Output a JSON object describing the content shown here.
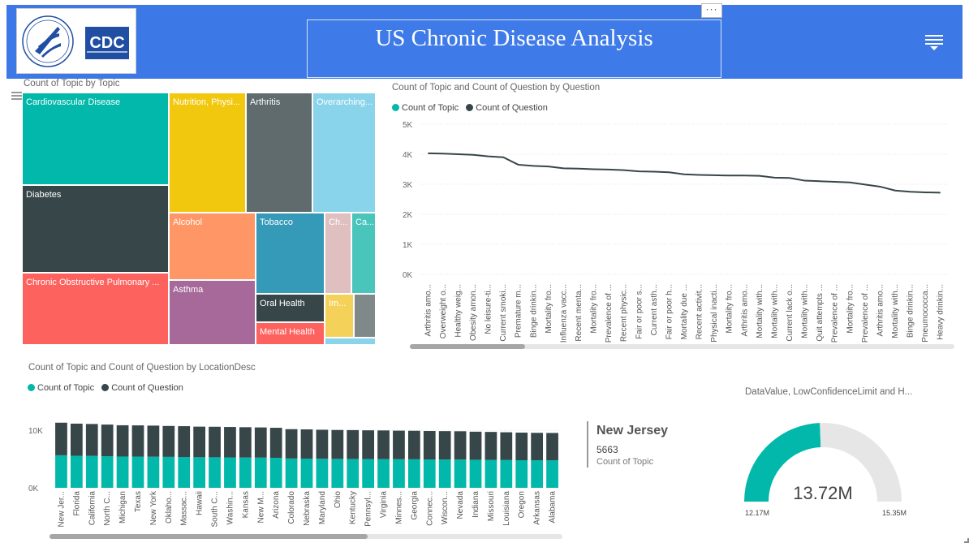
{
  "header": {
    "title": "US Chronic Disease Analysis",
    "more_icon": "ellipsis-icon",
    "menu_icon": "hamburger-menu-icon",
    "logo_cdc_text": "CDC",
    "colors": {
      "banner": "#3c78e6"
    }
  },
  "treemap": {
    "title": "Count of Topic by Topic",
    "tiles": [
      {
        "label": "Cardiovascular Disease",
        "color": "#01b8aa"
      },
      {
        "label": "Diabetes",
        "color": "#374649"
      },
      {
        "label": "Chronic Obstructive Pulmonary ...",
        "color": "#fd625e"
      },
      {
        "label": "Nutrition, Physi...",
        "color": "#f2c80f"
      },
      {
        "label": "Alcohol",
        "color": "#fe9666"
      },
      {
        "label": "Asthma",
        "color": "#a66999"
      },
      {
        "label": "Arthritis",
        "color": "#5f6b6d"
      },
      {
        "label": "Tobacco",
        "color": "#3599b8"
      },
      {
        "label": "Oral Health",
        "color": "#374649"
      },
      {
        "label": "Mental Health",
        "color": "#fd625e"
      },
      {
        "label": "Overarching...",
        "color": "#8ad4eb"
      },
      {
        "label": "Ch...",
        "color": "#dfbfbf"
      },
      {
        "label": "Ca...",
        "color": "#4ac5bb"
      },
      {
        "label": "Im...",
        "color": "#f4d25a"
      },
      {
        "label": "",
        "color": "#7f898a"
      },
      {
        "label": "",
        "color": "#8ad4eb"
      }
    ]
  },
  "question_chart": {
    "title": "Count of Topic and Count of Question by Question",
    "legend": [
      "Count of Topic",
      "Count of Question"
    ],
    "series_colors": [
      "#01b8aa",
      "#374649"
    ]
  },
  "location_chart": {
    "title": "Count of Topic and Count of Question by LocationDesc",
    "legend": [
      "Count of Topic",
      "Count of Question"
    ],
    "series_colors": [
      "#01b8aa",
      "#374649"
    ]
  },
  "card": {
    "name": "New Jersey",
    "value": "5663",
    "label": "Count of Topic"
  },
  "gauge": {
    "title": "DataValue, LowConfidenceLimit and H...",
    "value_label": "13.72M",
    "min_label": "12.17M",
    "max_label": "15.35M",
    "value": 13.72,
    "min": 12.17,
    "max": 15.35,
    "colors": {
      "fill": "#01b8aa",
      "track": "#e6e6e6"
    }
  },
  "chart_data": [
    {
      "type": "line",
      "title": "Count of Topic and Count of Question by Question",
      "ylim": [
        0,
        5000
      ],
      "y_ticks": [
        "0K",
        "1K",
        "2K",
        "3K",
        "4K",
        "5K"
      ],
      "categories": [
        "Arthritis amo...",
        "Overweight o...",
        "Healthy weig...",
        "Obesity amon...",
        "No leisure-ti...",
        "Current smoki...",
        "Premature m...",
        "Binge drinkin...",
        "Mortality fro...",
        "Influenza vacc...",
        "Recent menta...",
        "Mortality fro...",
        "Prevalence of ...",
        "Recent physic...",
        "Fair or poor s...",
        "Current asth...",
        "Fair or poor h...",
        "Mortality due ...",
        "Recent activit...",
        "Physical inacti...",
        "Mortality fro...",
        "Arthritis amo...",
        "Mortality with...",
        "Mortality with...",
        "Current lack o...",
        "Mortality with...",
        "Quit attempts ...",
        "Prevalence of ...",
        "Mortality fro...",
        "Prevalence of ...",
        "Arthritis amo...",
        "Mortality with...",
        "Binge drinkin...",
        "Pneumococca...",
        "Heavy drinkin..."
      ],
      "series": [
        {
          "name": "Count of Question",
          "values": [
            4030,
            4020,
            4000,
            3980,
            3930,
            3900,
            3650,
            3610,
            3590,
            3530,
            3520,
            3500,
            3490,
            3470,
            3430,
            3420,
            3400,
            3330,
            3310,
            3300,
            3290,
            3290,
            3280,
            3220,
            3210,
            3120,
            3100,
            3080,
            3060,
            2990,
            2920,
            2790,
            2750,
            2730,
            2720
          ]
        }
      ]
    },
    {
      "type": "bar",
      "title": "Count of Topic and Count of Question by LocationDesc",
      "stacked": true,
      "y_ticks": [
        "0K",
        "10K"
      ],
      "ylim": [
        0,
        12000
      ],
      "categories": [
        "New Jer...",
        "Florida",
        "California",
        "North C...",
        "Michigan",
        "Texas",
        "New York",
        "Oklaho...",
        "Massac...",
        "Hawaii",
        "South C...",
        "Washin...",
        "Kansas",
        "New M...",
        "Arizona",
        "Colorado",
        "Nebraska",
        "Maryland",
        "Ohio",
        "Kentucky",
        "Pennsyl...",
        "Virginia",
        "Minnes...",
        "Georgia",
        "Connec...",
        "Wiscon...",
        "Nevada",
        "Indiana",
        "Missouri",
        "Louisiana",
        "Oregon",
        "Arkansas",
        "Alabama"
      ],
      "series": [
        {
          "name": "Count of Topic",
          "values": [
            5663,
            5580,
            5550,
            5500,
            5440,
            5430,
            5410,
            5380,
            5360,
            5320,
            5310,
            5290,
            5270,
            5250,
            5220,
            5100,
            5080,
            5050,
            5030,
            5020,
            5000,
            4990,
            4970,
            4960,
            4940,
            4930,
            4920,
            4880,
            4860,
            4830,
            4800,
            4780,
            4770
          ]
        },
        {
          "name": "Count of Question",
          "values": [
            5663,
            5580,
            5550,
            5500,
            5440,
            5430,
            5410,
            5380,
            5360,
            5320,
            5310,
            5290,
            5270,
            5250,
            5220,
            5100,
            5080,
            5050,
            5030,
            5020,
            5000,
            4990,
            4970,
            4960,
            4940,
            4930,
            4920,
            4880,
            4860,
            4830,
            4800,
            4780,
            4770
          ]
        }
      ]
    }
  ]
}
